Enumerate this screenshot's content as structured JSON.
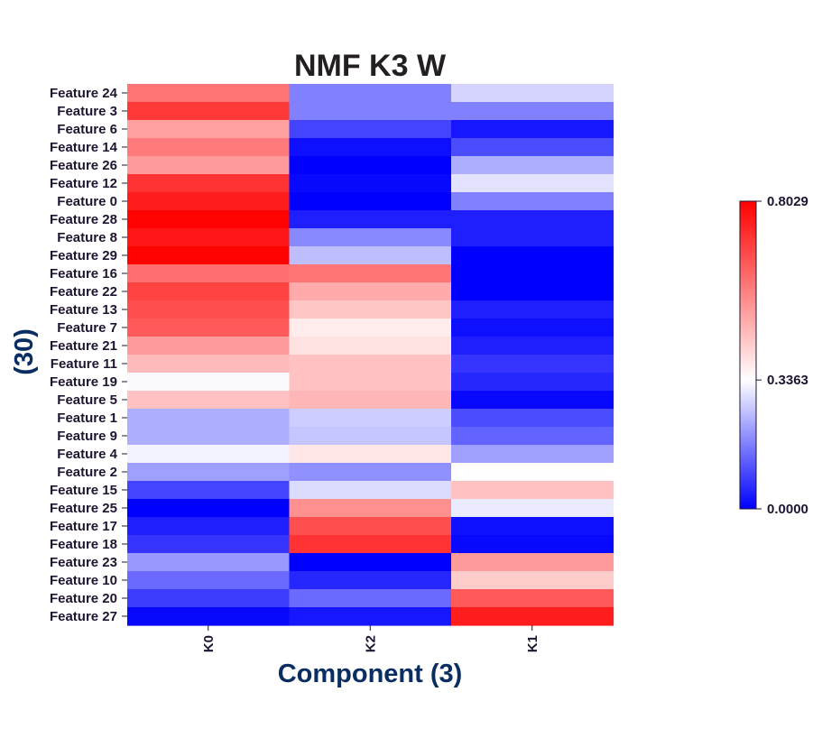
{
  "chart_data": {
    "type": "heatmap",
    "title": "NMF K3 W",
    "xlabel": "Component (3)",
    "ylabel": "(30)",
    "columns": [
      "K0",
      "K2",
      "K1"
    ],
    "rows": [
      "Feature 24",
      "Feature 3",
      "Feature 6",
      "Feature 14",
      "Feature 26",
      "Feature 12",
      "Feature 0",
      "Feature 28",
      "Feature 8",
      "Feature 29",
      "Feature 16",
      "Feature 22",
      "Feature 13",
      "Feature 7",
      "Feature 21",
      "Feature 11",
      "Feature 19",
      "Feature 5",
      "Feature 1",
      "Feature 9",
      "Feature 4",
      "Feature 2",
      "Feature 15",
      "Feature 25",
      "Feature 17",
      "Feature 18",
      "Feature 23",
      "Feature 10",
      "Feature 20",
      "Feature 27"
    ],
    "values": [
      [
        0.59,
        0.17,
        0.28
      ],
      [
        0.7,
        0.17,
        0.17
      ],
      [
        0.51,
        0.09,
        0.03
      ],
      [
        0.58,
        0.02,
        0.1
      ],
      [
        0.52,
        0.0,
        0.23
      ],
      [
        0.71,
        0.01,
        0.3
      ],
      [
        0.75,
        0.0,
        0.17
      ],
      [
        0.8,
        0.04,
        0.04
      ],
      [
        0.76,
        0.18,
        0.04
      ],
      [
        0.8,
        0.25,
        0.0
      ],
      [
        0.6,
        0.59,
        0.0
      ],
      [
        0.68,
        0.49,
        0.0
      ],
      [
        0.66,
        0.44,
        0.04
      ],
      [
        0.64,
        0.37,
        0.02
      ],
      [
        0.52,
        0.39,
        0.04
      ],
      [
        0.46,
        0.45,
        0.07
      ],
      [
        0.33,
        0.45,
        0.05
      ],
      [
        0.45,
        0.47,
        0.01
      ],
      [
        0.23,
        0.27,
        0.1
      ],
      [
        0.23,
        0.26,
        0.13
      ],
      [
        0.32,
        0.38,
        0.21
      ],
      [
        0.21,
        0.19,
        0.34
      ],
      [
        0.09,
        0.29,
        0.45
      ],
      [
        0.0,
        0.54,
        0.31
      ],
      [
        0.04,
        0.66,
        0.02
      ],
      [
        0.07,
        0.71,
        0.01
      ],
      [
        0.2,
        0.0,
        0.52
      ],
      [
        0.14,
        0.05,
        0.43
      ],
      [
        0.08,
        0.14,
        0.64
      ],
      [
        0.01,
        0.03,
        0.75
      ]
    ],
    "vmin": 0.0,
    "vmax": 0.8029,
    "colormap": [
      "#0000ff",
      "#ffffff",
      "#ff0000"
    ],
    "colorbar": {
      "ticks": [
        {
          "value": 0.8029,
          "label": "0.8029"
        },
        {
          "value": 0.3363,
          "label": "0.3363"
        },
        {
          "value": 0.0,
          "label": "0.0000"
        }
      ]
    },
    "title_color": "#231f20",
    "axis_label_color": "#0b2e62",
    "tick_label_color": "#1f1530"
  }
}
